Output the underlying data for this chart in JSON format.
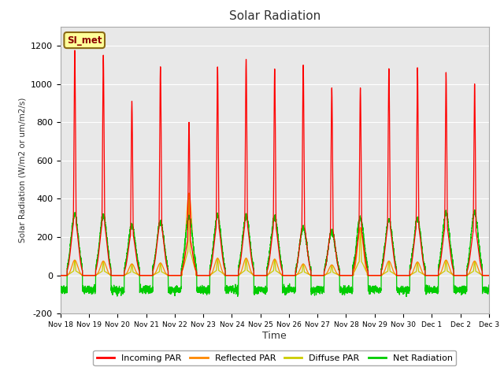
{
  "title": "Solar Radiation",
  "ylabel": "Solar Radiation (W/m2 or um/m2/s)",
  "xlabel": "Time",
  "ylim": [
    -200,
    1300
  ],
  "yticks": [
    -200,
    0,
    200,
    400,
    600,
    800,
    1000,
    1200
  ],
  "background_color": "#ffffff",
  "plot_bg_color": "#e8e8e8",
  "grid_color": "#ffffff",
  "station_label": "SI_met",
  "x_tick_labels": [
    "Nov 18",
    "Nov 19",
    "Nov 20",
    "Nov 21",
    "Nov 22",
    "Nov 23",
    "Nov 24",
    "Nov 25",
    "Nov 26",
    "Nov 27",
    "Nov 28",
    "Nov 29",
    "Nov 30",
    "Dec 1",
    "Dec 2",
    "Dec 3"
  ],
  "colors": {
    "incoming": "#ff0000",
    "reflected": "#ff8800",
    "diffuse": "#cccc00",
    "net": "#00cc00"
  },
  "legend_labels": [
    "Incoming PAR",
    "Reflected PAR",
    "Diffuse PAR",
    "Net Radiation"
  ],
  "legend_colors": [
    "#ff0000",
    "#ff8800",
    "#cccc00",
    "#00cc00"
  ],
  "incoming_peaks": [
    1175,
    1150,
    910,
    1090,
    800,
    1090,
    1130,
    1080,
    1100,
    980,
    980,
    1080,
    1085,
    1060,
    1000
  ],
  "net_peaks": [
    320,
    315,
    260,
    280,
    310,
    310,
    310,
    305,
    250,
    230,
    300,
    290,
    295,
    325,
    330
  ],
  "reflected_peaks": [
    80,
    75,
    60,
    65,
    430,
    90,
    90,
    85,
    60,
    55,
    250,
    75,
    70,
    80,
    75
  ],
  "diffuse_peaks": [
    80,
    75,
    60,
    65,
    430,
    90,
    90,
    85,
    60,
    55,
    250,
    75,
    70,
    80,
    75
  ]
}
